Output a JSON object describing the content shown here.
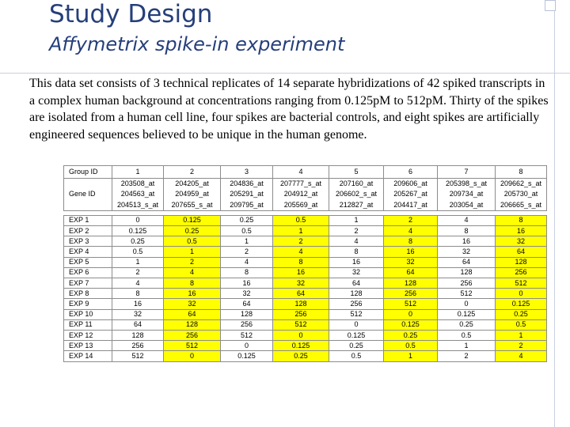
{
  "slide": {
    "title": "Study Design",
    "subtitle": "Affymetrix spike-in experiment",
    "body": "This data set consists of 3 technical replicates of 14 separate hybridizations of 42 spiked transcripts in a complex human background at concentrations ranging from 0.125pM to 512pM. Thirty of the spikes are isolated from a human cell line, four spikes are bacterial controls, and eight spikes are artificially engineered sequences believed to be unique in the human genome."
  },
  "table": {
    "group_label": "Group ID",
    "gene_label": "Gene ID",
    "group_ids": [
      "1",
      "2",
      "3",
      "4",
      "5",
      "6",
      "7",
      "8"
    ],
    "gene_rows": [
      [
        "203508_at",
        "204205_at",
        "204836_at",
        "207777_s_at",
        "207160_at",
        "209606_at",
        "205398_s_at",
        "209662_s_at"
      ],
      [
        "204563_at",
        "204959_at",
        "205291_at",
        "204912_at",
        "206602_s_at",
        "205267_at",
        "209734_at",
        "205730_at"
      ],
      [
        "204513_s_at",
        "207655_s_at",
        "209795_at",
        "205569_at",
        "212827_at",
        "204417_at",
        "203054_at",
        "206665_s_at"
      ]
    ],
    "rows": [
      {
        "label": "EXP 1",
        "values": [
          "0",
          "0.125",
          "0.25",
          "0.5",
          "1",
          "2",
          "4",
          "8"
        ]
      },
      {
        "label": "EXP 2",
        "values": [
          "0.125",
          "0.25",
          "0.5",
          "1",
          "2",
          "4",
          "8",
          "16"
        ]
      },
      {
        "label": "EXP 3",
        "values": [
          "0.25",
          "0.5",
          "1",
          "2",
          "4",
          "8",
          "16",
          "32"
        ]
      },
      {
        "label": "EXP 4",
        "values": [
          "0.5",
          "1",
          "2",
          "4",
          "8",
          "16",
          "32",
          "64"
        ]
      },
      {
        "label": "EXP 5",
        "values": [
          "1",
          "2",
          "4",
          "8",
          "16",
          "32",
          "64",
          "128"
        ]
      },
      {
        "label": "EXP 6",
        "values": [
          "2",
          "4",
          "8",
          "16",
          "32",
          "64",
          "128",
          "256"
        ]
      },
      {
        "label": "EXP 7",
        "values": [
          "4",
          "8",
          "16",
          "32",
          "64",
          "128",
          "256",
          "512"
        ]
      },
      {
        "label": "EXP 8",
        "values": [
          "8",
          "16",
          "32",
          "64",
          "128",
          "256",
          "512",
          "0"
        ]
      },
      {
        "label": "EXP 9",
        "values": [
          "16",
          "32",
          "64",
          "128",
          "256",
          "512",
          "0",
          "0.125"
        ]
      },
      {
        "label": "EXP 10",
        "values": [
          "32",
          "64",
          "128",
          "256",
          "512",
          "0",
          "0.125",
          "0.25"
        ]
      },
      {
        "label": "EXP 11",
        "values": [
          "64",
          "128",
          "256",
          "512",
          "0",
          "0.125",
          "0.25",
          "0.5"
        ]
      },
      {
        "label": "EXP 12",
        "values": [
          "128",
          "256",
          "512",
          "0",
          "0.125",
          "0.25",
          "0.5",
          "1"
        ]
      },
      {
        "label": "EXP 13",
        "values": [
          "256",
          "512",
          "0",
          "0.125",
          "0.25",
          "0.5",
          "1",
          "2"
        ]
      },
      {
        "label": "EXP 14",
        "values": [
          "512",
          "0",
          "0.125",
          "0.25",
          "0.5",
          "1",
          "2",
          "4"
        ]
      }
    ],
    "highlight_columns": [
      2,
      4,
      6,
      8
    ],
    "highlight_color": "#ffff00"
  }
}
